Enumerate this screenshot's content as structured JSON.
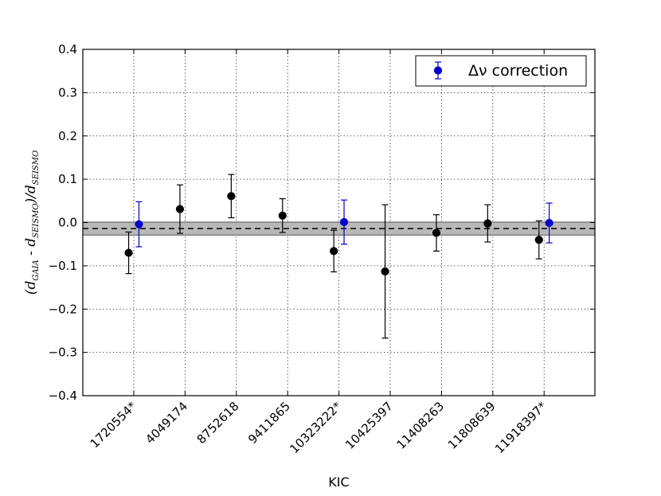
{
  "chart_data": {
    "type": "scatter",
    "xlabel": "KIC",
    "ylabel_main": "(d",
    "ylabel_sub1": "GAIA",
    "ylabel_mid": " - d",
    "ylabel_sub2": "SEISMO",
    "ylabel_tail": ")/d",
    "ylabel_sub3": "SEISMO",
    "ylim": [
      -0.4,
      0.4
    ],
    "yticks": [
      0.4,
      0.3,
      0.2,
      0.1,
      0.0,
      -0.1,
      -0.2,
      -0.3,
      -0.4
    ],
    "ytick_labels": [
      "0.4",
      "0.3",
      "0.2",
      "0.1",
      "0.0",
      "−0.1",
      "−0.2",
      "−0.3",
      "−0.4"
    ],
    "categories": [
      "1720554*",
      "4049174",
      "8752618",
      "9411865",
      "10323222*",
      "10425397",
      "11408263",
      "11808639",
      "11918397*"
    ],
    "grid": true,
    "mean_line": -0.014,
    "band": [
      -0.029,
      0.001
    ],
    "legend_location": "top-right",
    "series": [
      {
        "name": "",
        "color": "#000000",
        "offset": -0.1,
        "points": [
          {
            "x": 0,
            "y": -0.07,
            "err": 0.048
          },
          {
            "x": 1,
            "y": 0.031,
            "err": 0.056
          },
          {
            "x": 2,
            "y": 0.061,
            "err": 0.05
          },
          {
            "x": 3,
            "y": 0.016,
            "err": 0.039
          },
          {
            "x": 4,
            "y": -0.066,
            "err": 0.048
          },
          {
            "x": 5,
            "y": -0.113,
            "err": 0.154
          },
          {
            "x": 6,
            "y": -0.024,
            "err": 0.042
          },
          {
            "x": 7,
            "y": -0.002,
            "err": 0.043
          },
          {
            "x": 8,
            "y": -0.04,
            "err": 0.044
          }
        ]
      },
      {
        "name": "Δν correction",
        "color": "#0000cc",
        "offset": 0.1,
        "points": [
          {
            "x": 0,
            "y": -0.004,
            "err": 0.052
          },
          {
            "x": 4,
            "y": 0.001,
            "err": 0.051
          },
          {
            "x": 8,
            "y": -0.001,
            "err": 0.046
          }
        ]
      }
    ]
  }
}
